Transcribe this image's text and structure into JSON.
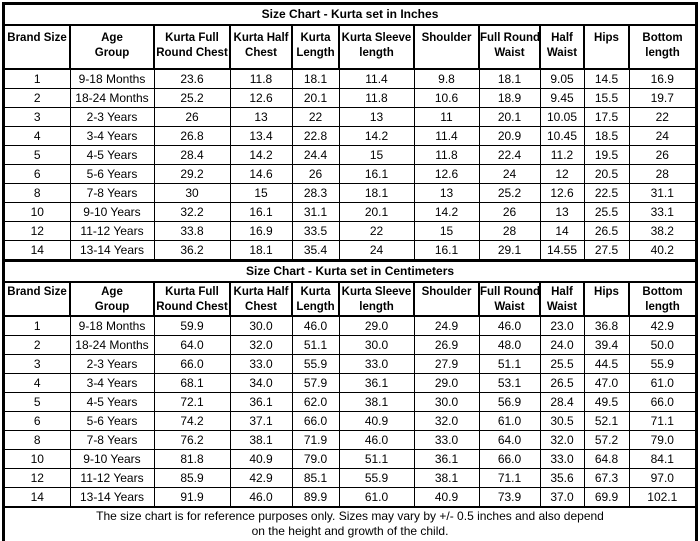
{
  "colors": {
    "border": "#000000",
    "text": "#000000",
    "background": "#ffffff"
  },
  "tables": [
    {
      "title": "Size Chart - Kurta set in Inches",
      "columns": [
        [
          "Brand Size"
        ],
        [
          "Age",
          "Group"
        ],
        [
          "Kurta Full",
          "Round Chest"
        ],
        [
          "Kurta Half",
          "Chest"
        ],
        [
          "Kurta",
          "Length"
        ],
        [
          "Kurta Sleeve",
          "length"
        ],
        [
          "Shoulder"
        ],
        [
          "Full Round",
          "Waist"
        ],
        [
          "Half",
          "Waist"
        ],
        [
          "Hips"
        ],
        [
          "Bottom",
          "length"
        ]
      ],
      "rows": [
        [
          "1",
          "9-18 Months",
          "23.6",
          "11.8",
          "18.1",
          "11.4",
          "9.8",
          "18.1",
          "9.05",
          "14.5",
          "16.9"
        ],
        [
          "2",
          "18-24 Months",
          "25.2",
          "12.6",
          "20.1",
          "11.8",
          "10.6",
          "18.9",
          "9.45",
          "15.5",
          "19.7"
        ],
        [
          "3",
          "2-3 Years",
          "26",
          "13",
          "22",
          "13",
          "11",
          "20.1",
          "10.05",
          "17.5",
          "22"
        ],
        [
          "4",
          "3-4 Years",
          "26.8",
          "13.4",
          "22.8",
          "14.2",
          "11.4",
          "20.9",
          "10.45",
          "18.5",
          "24"
        ],
        [
          "5",
          "4-5 Years",
          "28.4",
          "14.2",
          "24.4",
          "15",
          "11.8",
          "22.4",
          "11.2",
          "19.5",
          "26"
        ],
        [
          "6",
          "5-6 Years",
          "29.2",
          "14.6",
          "26",
          "16.1",
          "12.6",
          "24",
          "12",
          "20.5",
          "28"
        ],
        [
          "8",
          "7-8 Years",
          "30",
          "15",
          "28.3",
          "18.1",
          "13",
          "25.2",
          "12.6",
          "22.5",
          "31.1"
        ],
        [
          "10",
          "9-10 Years",
          "32.2",
          "16.1",
          "31.1",
          "20.1",
          "14.2",
          "26",
          "13",
          "25.5",
          "33.1"
        ],
        [
          "12",
          "11-12 Years",
          "33.8",
          "16.9",
          "33.5",
          "22",
          "15",
          "28",
          "14",
          "26.5",
          "38.2"
        ],
        [
          "14",
          "13-14 Years",
          "36.2",
          "18.1",
          "35.4",
          "24",
          "16.1",
          "29.1",
          "14.55",
          "27.5",
          "40.2"
        ]
      ]
    },
    {
      "title": "Size Chart - Kurta set in Centimeters",
      "columns": [
        [
          "Brand Size"
        ],
        [
          "Age",
          "Group"
        ],
        [
          "Kurta Full",
          "Round Chest"
        ],
        [
          "Kurta Half",
          "Chest"
        ],
        [
          "Kurta",
          "Length"
        ],
        [
          "Kurta Sleeve",
          "length"
        ],
        [
          "Shoulder"
        ],
        [
          "Full Round",
          "Waist"
        ],
        [
          "Half",
          "Waist"
        ],
        [
          "Hips"
        ],
        [
          "Bottom",
          "length"
        ]
      ],
      "rows": [
        [
          "1",
          "9-18 Months",
          "59.9",
          "30.0",
          "46.0",
          "29.0",
          "24.9",
          "46.0",
          "23.0",
          "36.8",
          "42.9"
        ],
        [
          "2",
          "18-24 Months",
          "64.0",
          "32.0",
          "51.1",
          "30.0",
          "26.9",
          "48.0",
          "24.0",
          "39.4",
          "50.0"
        ],
        [
          "3",
          "2-3 Years",
          "66.0",
          "33.0",
          "55.9",
          "33.0",
          "27.9",
          "51.1",
          "25.5",
          "44.5",
          "55.9"
        ],
        [
          "4",
          "3-4 Years",
          "68.1",
          "34.0",
          "57.9",
          "36.1",
          "29.0",
          "53.1",
          "26.5",
          "47.0",
          "61.0"
        ],
        [
          "5",
          "4-5 Years",
          "72.1",
          "36.1",
          "62.0",
          "38.1",
          "30.0",
          "56.9",
          "28.4",
          "49.5",
          "66.0"
        ],
        [
          "6",
          "5-6 Years",
          "74.2",
          "37.1",
          "66.0",
          "40.9",
          "32.0",
          "61.0",
          "30.5",
          "52.1",
          "71.1"
        ],
        [
          "8",
          "7-8 Years",
          "76.2",
          "38.1",
          "71.9",
          "46.0",
          "33.0",
          "64.0",
          "32.0",
          "57.2",
          "79.0"
        ],
        [
          "10",
          "9-10 Years",
          "81.8",
          "40.9",
          "79.0",
          "51.1",
          "36.1",
          "66.0",
          "33.0",
          "64.8",
          "84.1"
        ],
        [
          "12",
          "11-12 Years",
          "85.9",
          "42.9",
          "85.1",
          "55.9",
          "38.1",
          "71.1",
          "35.6",
          "67.3",
          "97.0"
        ],
        [
          "14",
          "13-14 Years",
          "91.9",
          "46.0",
          "89.9",
          "61.0",
          "40.9",
          "73.9",
          "37.0",
          "69.9",
          "102.1"
        ]
      ]
    }
  ],
  "footer": {
    "lines": [
      "The size chart is for reference purposes only. Sizes may vary by +/- 0.5 inches and also depend",
      "on the height and growth of the child."
    ]
  }
}
